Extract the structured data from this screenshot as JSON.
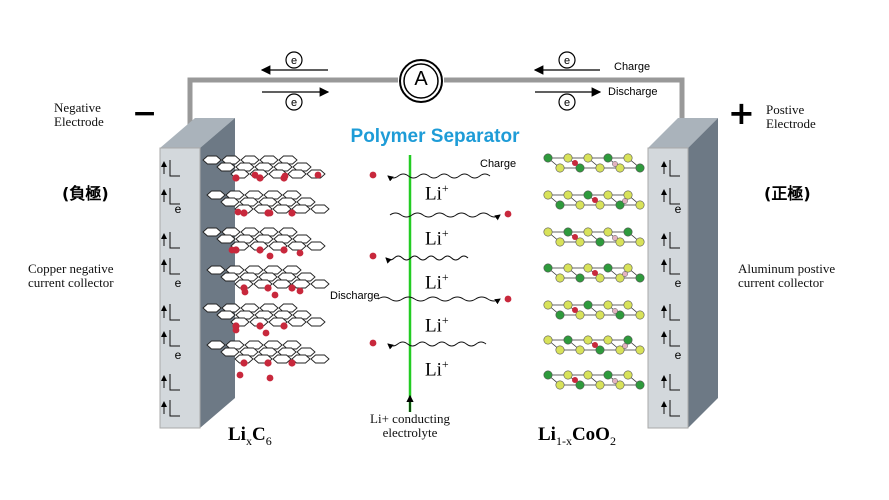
{
  "separator_title": "Polymer Separator",
  "separator_color": "#1e9cd7",
  "ammeter_label": "A",
  "electron_symbol": "e",
  "left": {
    "sign": "−",
    "electrode": [
      "Negative",
      "Electrode"
    ],
    "chinese": "(負極)",
    "collector": [
      "Copper negative",
      "current collector"
    ],
    "formula": {
      "base": "Li",
      "sub1": "x",
      "mid": "C",
      "sub2": "6"
    }
  },
  "right": {
    "sign": "+",
    "electrode": [
      "Postive",
      "Electrode"
    ],
    "chinese": "(正極)",
    "collector": [
      "Aluminum postive",
      "current collector"
    ],
    "formula": {
      "base": "Li",
      "sub1": "1-x",
      "mid": "CoO",
      "sub2": "2"
    }
  },
  "circuit": {
    "charge": "Charge",
    "discharge": "Discharge"
  },
  "ion_flow": {
    "charge": "Charge",
    "discharge": "Discharge"
  },
  "li_ion": {
    "base": "Li",
    "charge": "+"
  },
  "electrolyte": [
    "Li+ conducting",
    "electrolyte"
  ],
  "colors": {
    "separator_line": "#22cc22",
    "collector_face": "#d3d8dc",
    "collector_side": "#6d7985",
    "lithium_dot": "#c8283c",
    "cathode_green": "#2e9a3c",
    "cathode_yellow": "#d8e25a",
    "wire": "#999999"
  }
}
